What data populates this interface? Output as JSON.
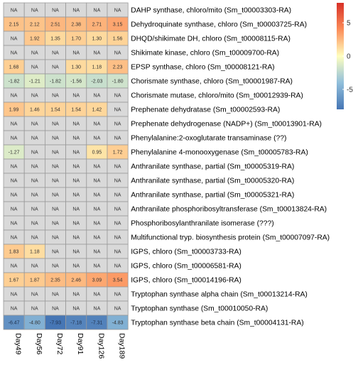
{
  "chart_data": {
    "type": "heatmap",
    "columns": [
      "Day49",
      "Day56",
      "Day72",
      "Day91",
      "Day126",
      "Day189"
    ],
    "rows": [
      "DAHP synthase, chloro/mito (Sm_t00003303-RA)",
      "Dehydroquinate synthase, chloro (Sm_t00003725-RA)",
      "DHQD/shikimate DH, chloro (Sm_t00008115-RA)",
      "Shikimate kinase, chloro (Sm_t00009700-RA)",
      "EPSP synthase, chloro (Sm_t00008121-RA)",
      "Chorismate synthase, chloro (Sm_t00001987-RA)",
      "Chorismate mutase, chloro/mito (Sm_t00012939-RA)",
      "Prephenate dehydratase (Sm_t00002593-RA)",
      "Prephenate dehydrogenase (NADP+) (Sm_t00013901-RA)",
      "Phenylalanine:2-oxoglutarate transaminase (??)",
      "Phenylalanine 4-monooxygenase (Sm_t00005783-RA)",
      "Anthranilate synthase, partial (Sm_t00005319-RA)",
      "Anthranilate synthase, partial (Sm_t00005320-RA)",
      "Anthranilate synthase, partial (Sm_t00005321-RA)",
      "Anthranilate phosphoribosyltransferase (Sm_t00013824-RA)",
      "Phosphoribosylanthranilate isomerase (???)",
      "Multifunctional tryp. biosynthesis protein (Sm_t00007097-RA)",
      "IGPS, chloro (Sm_t00003733-RA)",
      "IGPS, chloro (Sm_t00006581-RA)",
      "IGPS, chloro (Sm_t00014196-RA)",
      "Tryptophan synthase alpha chain (Sm_t00013214-RA)",
      "Tryptophan synthase (Sm_t00010050-RA)",
      "Tryptophan synthase beta chain (Sm_t00004131-RA)"
    ],
    "values": [
      [
        null,
        null,
        null,
        null,
        null,
        null
      ],
      [
        2.15,
        2.12,
        2.51,
        2.38,
        2.71,
        3.15
      ],
      [
        null,
        1.92,
        1.35,
        1.7,
        1.3,
        1.56
      ],
      [
        null,
        null,
        null,
        null,
        null,
        null
      ],
      [
        1.68,
        null,
        null,
        1.3,
        1.18,
        2.23
      ],
      [
        -1.82,
        -1.21,
        -1.82,
        -1.56,
        -2.03,
        -1.8
      ],
      [
        null,
        null,
        null,
        null,
        null,
        null
      ],
      [
        1.99,
        1.46,
        1.54,
        1.54,
        1.42,
        null
      ],
      [
        null,
        null,
        null,
        null,
        null,
        null
      ],
      [
        null,
        null,
        null,
        null,
        null,
        null
      ],
      [
        -1.27,
        null,
        null,
        null,
        0.95,
        1.72
      ],
      [
        null,
        null,
        null,
        null,
        null,
        null
      ],
      [
        null,
        null,
        null,
        null,
        null,
        null
      ],
      [
        null,
        null,
        null,
        null,
        null,
        null
      ],
      [
        null,
        null,
        null,
        null,
        null,
        null
      ],
      [
        null,
        null,
        null,
        null,
        null,
        null
      ],
      [
        null,
        null,
        null,
        null,
        null,
        null
      ],
      [
        1.83,
        1.18,
        null,
        null,
        null,
        null
      ],
      [
        null,
        null,
        null,
        null,
        null,
        null
      ],
      [
        1.67,
        1.87,
        2.35,
        2.46,
        3.09,
        3.54
      ],
      [
        null,
        null,
        null,
        null,
        null,
        null
      ],
      [
        null,
        null,
        null,
        null,
        null,
        null
      ],
      [
        -6.47,
        -4.8,
        -7.93,
        -7.18,
        -7.31,
        -4.83
      ]
    ],
    "cell_labels": [
      [
        "NA",
        "NA",
        "NA",
        "NA",
        "NA",
        "NA"
      ],
      [
        "2.15",
        "2.12",
        "2.51",
        "2.38",
        "2.71",
        "3.15"
      ],
      [
        "NA",
        "1.92",
        "1.35",
        "1.70",
        "1.30",
        "1.56"
      ],
      [
        "NA",
        "NA",
        "NA",
        "NA",
        "NA",
        "NA"
      ],
      [
        "1.68",
        "NA",
        "NA",
        "1.30",
        "1.18",
        "2.23"
      ],
      [
        "-1.82",
        "-1.21",
        "-1.82",
        "-1.56",
        "-2.03",
        "-1.80"
      ],
      [
        "NA",
        "NA",
        "NA",
        "NA",
        "NA",
        "NA"
      ],
      [
        "1.99",
        "1.46",
        "1.54",
        "1.54",
        "1.42",
        "NA"
      ],
      [
        "NA",
        "NA",
        "NA",
        "NA",
        "NA",
        "NA"
      ],
      [
        "NA",
        "NA",
        "NA",
        "NA",
        "NA",
        "NA"
      ],
      [
        "-1.27",
        "NA",
        "NA",
        "NA",
        "0.95",
        "1.72"
      ],
      [
        "NA",
        "NA",
        "NA",
        "NA",
        "NA",
        "NA"
      ],
      [
        "NA",
        "NA",
        "NA",
        "NA",
        "NA",
        "NA"
      ],
      [
        "NA",
        "NA",
        "NA",
        "NA",
        "NA",
        "NA"
      ],
      [
        "NA",
        "NA",
        "NA",
        "NA",
        "NA",
        "NA"
      ],
      [
        "NA",
        "NA",
        "NA",
        "NA",
        "NA",
        "NA"
      ],
      [
        "NA",
        "NA",
        "NA",
        "NA",
        "NA",
        "NA"
      ],
      [
        "1.83",
        "1.18",
        "NA",
        "NA",
        "NA",
        "NA"
      ],
      [
        "NA",
        "NA",
        "NA",
        "NA",
        "NA",
        "NA"
      ],
      [
        "1.67",
        "1.87",
        "2.35",
        "2.46",
        "3.09",
        "3.54"
      ],
      [
        "NA",
        "NA",
        "NA",
        "NA",
        "NA",
        "NA"
      ],
      [
        "NA",
        "NA",
        "NA",
        "NA",
        "NA",
        "NA"
      ],
      [
        "-6.47",
        "-4.80",
        "-7.93",
        "-7.18",
        "-7.31",
        "-4.83"
      ]
    ],
    "legend": {
      "type": "colorbar",
      "range": [
        -8,
        8
      ],
      "ticks": [
        5,
        0,
        -5
      ],
      "tick_labels": [
        "5",
        "0",
        "-5"
      ],
      "placement": "top-right"
    },
    "colors": {
      "low": "#4575b4",
      "mid_low": "#e0f3f8",
      "mid": "#ffffbf",
      "mid_high": "#fee090",
      "high": "#d73027",
      "missing": "#d9d9d9",
      "grid": "#999999"
    }
  }
}
